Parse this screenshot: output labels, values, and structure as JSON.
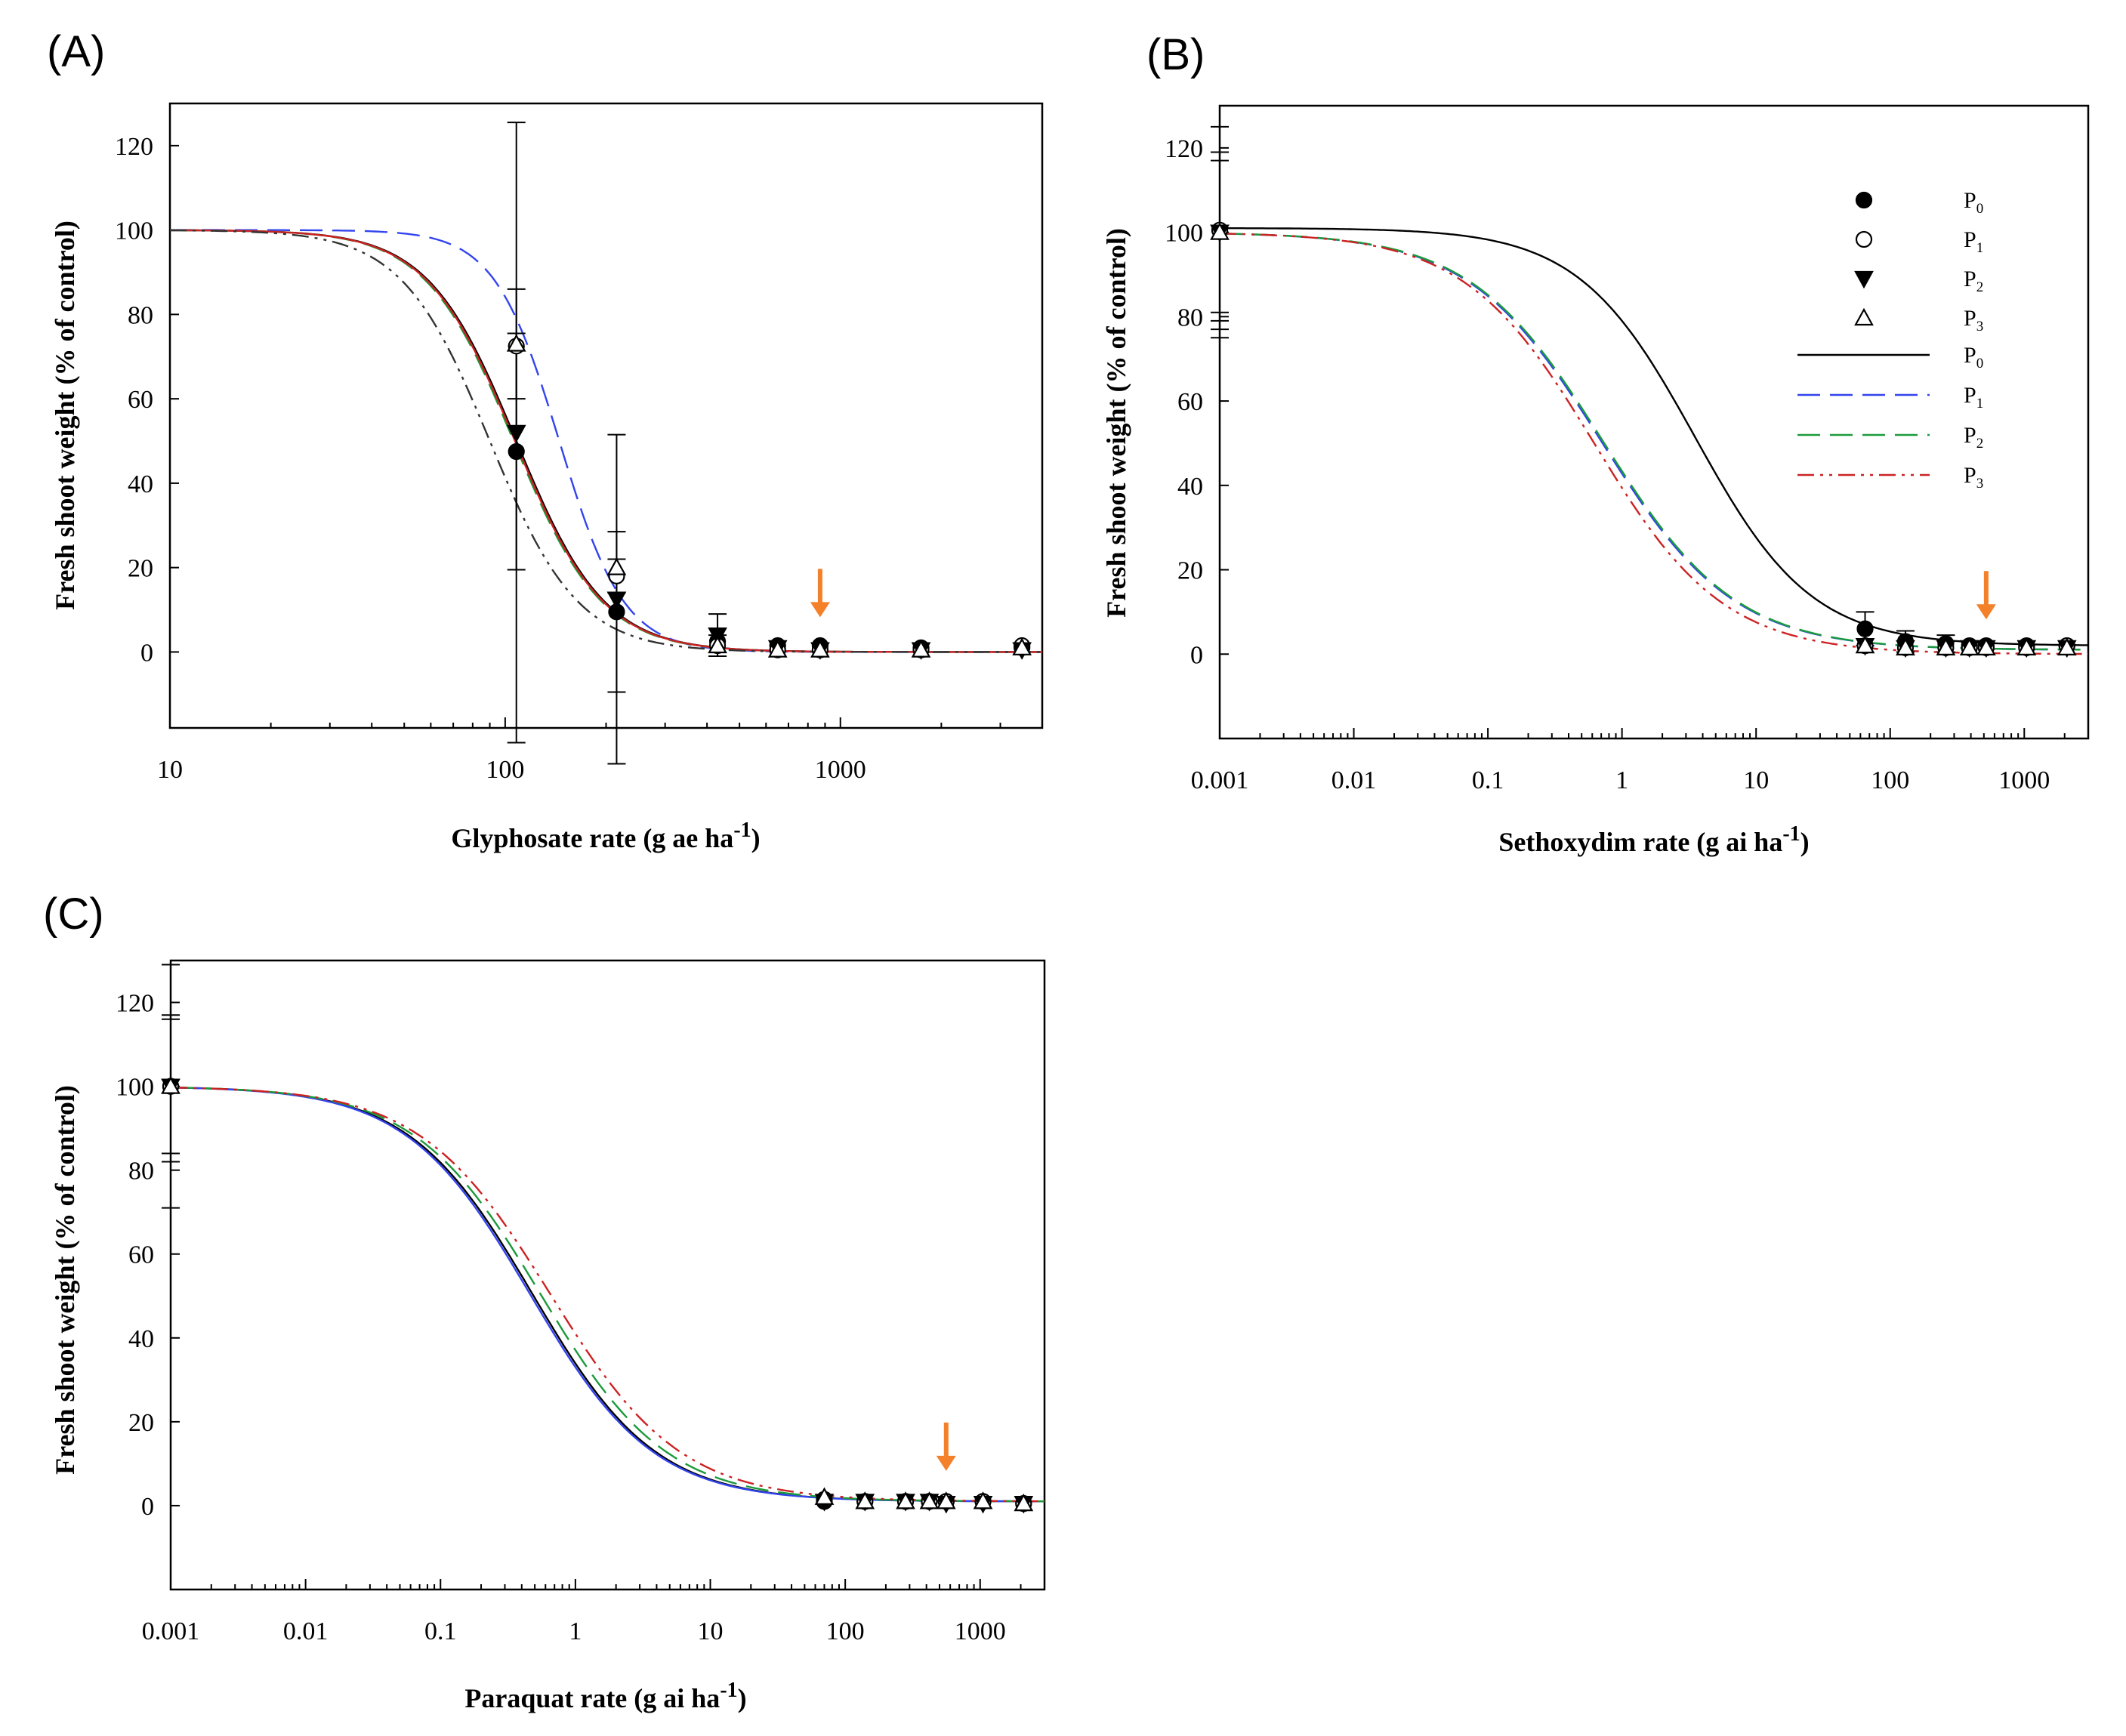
{
  "figure": {
    "marker_color": "#000000",
    "arrow_color": "#f4802a"
  },
  "chart_data": [
    {
      "panel": "(A)",
      "type": "scatter",
      "xscale": "log",
      "xlim": [
        10,
        4000
      ],
      "ylim": [
        -18,
        130
      ],
      "xticks": [
        10,
        100,
        1000
      ],
      "xtick_labels": [
        "10",
        "100",
        "1000"
      ],
      "yticks": [
        0,
        20,
        40,
        60,
        80,
        100,
        120
      ],
      "ytick_labels": [
        "0",
        "20",
        "40",
        "60",
        "80",
        "100",
        "120"
      ],
      "xlabel": "Glyphosate rate (g ae ha",
      "xlabel_sup": "-1",
      "xlabel_end": ")",
      "ylabel": "Fresh shoot weight (% of control)",
      "arrow_x": 870,
      "series": [
        {
          "name": "P0",
          "marker": "filled-circle",
          "x": [
            108,
            215,
            430,
            650,
            870,
            1740,
            3480
          ],
          "y": [
            47.5,
            9.5,
            2.5,
            1.5,
            1.5,
            1,
            1
          ],
          "err": [
            28,
            19,
            0,
            0,
            0,
            0,
            0
          ]
        },
        {
          "name": "P1",
          "marker": "open-circle",
          "x": [
            108,
            215,
            430,
            650,
            870,
            1740,
            3480
          ],
          "y": [
            72.5,
            18,
            1.5,
            0.5,
            0.5,
            0.5,
            1.5
          ],
          "err": [
            0,
            4,
            2.5,
            0,
            0,
            0,
            0
          ]
        },
        {
          "name": "P2",
          "marker": "filled-triangle-down",
          "x": [
            108,
            215,
            430,
            650,
            870,
            1740,
            3480
          ],
          "y": [
            52,
            12.5,
            4,
            1,
            0.5,
            0.5,
            0.5
          ],
          "err": [
            73.5,
            39,
            5,
            0,
            0,
            0,
            0
          ]
        },
        {
          "name": "P3",
          "marker": "open-triangle-up",
          "x": [
            108,
            215,
            430,
            650,
            870,
            1740,
            3480
          ],
          "y": [
            73,
            20,
            1.5,
            0.5,
            0.5,
            0.5,
            1
          ],
          "err": [
            13,
            0,
            0,
            0,
            0,
            0,
            0
          ]
        }
      ],
      "curves": [
        {
          "name": "P0",
          "color": "#000000",
          "dash": "solid",
          "top": 100,
          "bottom": 0,
          "x50": 108,
          "slope": 3.3
        },
        {
          "name": "P1",
          "color": "#3344ee",
          "dash": "long-dash",
          "top": 100,
          "bottom": 0,
          "x50": 145,
          "slope": 4.5
        },
        {
          "name": "P2",
          "color": "#1a9a3a",
          "dash": "long-dash",
          "top": 100,
          "bottom": 0,
          "x50": 106,
          "slope": 3.3
        },
        {
          "name": "P3",
          "color": "#cc2222",
          "dash": "solid",
          "top": 100,
          "bottom": 0,
          "x50": 107,
          "slope": 3.3
        },
        {
          "name": "P3b",
          "color": "#333333",
          "dash": "dash-dot-dot",
          "top": 100,
          "bottom": 0,
          "x50": 90,
          "slope": 3.3
        }
      ]
    },
    {
      "panel": "(B)",
      "type": "scatter",
      "xscale": "log",
      "xlim": [
        0.001,
        3000
      ],
      "ylim": [
        -20,
        130
      ],
      "xticks": [
        0.001,
        0.01,
        0.1,
        1,
        10,
        100,
        1000
      ],
      "xtick_labels": [
        "0.001",
        "0.01",
        "0.1",
        "1",
        "10",
        "100",
        "1000"
      ],
      "yticks": [
        0,
        20,
        40,
        60,
        80,
        100,
        120
      ],
      "ytick_labels": [
        "0",
        "20",
        "40",
        "60",
        "80",
        "100",
        "120"
      ],
      "xlabel": "Sethoxydim rate (g ai ha",
      "xlabel_sup": "-1",
      "xlabel_end": ")",
      "ylabel": "Fresh shoot weight (% of control)",
      "arrow_x": 520,
      "legend": {
        "position": "top-right",
        "markers": [
          {
            "label": "P",
            "sub": "0",
            "marker": "filled-circle"
          },
          {
            "label": "P",
            "sub": "1",
            "marker": "open-circle"
          },
          {
            "label": "P",
            "sub": "2",
            "marker": "filled-triangle-down"
          },
          {
            "label": "P",
            "sub": "3",
            "marker": "open-triangle-up"
          }
        ],
        "lines": [
          {
            "label": "P",
            "sub": "0",
            "color": "#000000",
            "dash": "solid"
          },
          {
            "label": "P",
            "sub": "1",
            "color": "#3344ee",
            "dash": "long-dash"
          },
          {
            "label": "P",
            "sub": "2",
            "color": "#1a9a3a",
            "dash": "long-dash"
          },
          {
            "label": "P",
            "sub": "3",
            "color": "#cc2222",
            "dash": "dash-dot-dot"
          }
        ]
      },
      "control_errors": [
        125,
        119,
        117,
        81,
        79,
        77,
        75
      ],
      "series": [
        {
          "name": "P0",
          "marker": "filled-circle",
          "x": [
            0.001,
            65,
            130,
            260,
            390,
            520,
            1040,
            2080
          ],
          "y": [
            100.5,
            6,
            3,
            2.5,
            2,
            2,
            2,
            2
          ],
          "err": [
            0,
            4,
            2.5,
            2,
            0,
            0,
            0,
            0
          ]
        },
        {
          "name": "P1",
          "marker": "open-circle",
          "x": [
            0.001,
            65,
            130,
            260,
            390,
            520,
            1040,
            2080
          ],
          "y": [
            100.5,
            2,
            1.5,
            1.5,
            1.5,
            1.5,
            1.5,
            2
          ],
          "err": [
            0,
            0,
            0,
            0,
            0,
            0,
            0,
            0
          ]
        },
        {
          "name": "P2",
          "marker": "filled-triangle-down",
          "x": [
            0.001,
            65,
            130,
            260,
            390,
            520,
            1040,
            2080
          ],
          "y": [
            100,
            2,
            1.5,
            1.5,
            1.5,
            1.5,
            1.5,
            1.5
          ],
          "err": [
            0,
            0,
            0,
            0,
            0,
            0,
            0,
            0
          ]
        },
        {
          "name": "P3",
          "marker": "open-triangle-up",
          "x": [
            0.001,
            65,
            130,
            260,
            390,
            520,
            1040,
            2080
          ],
          "y": [
            100,
            2,
            1.5,
            1.5,
            1.5,
            1.5,
            1.5,
            1.5
          ],
          "err": [
            0,
            0,
            0,
            0,
            0,
            0,
            0,
            0
          ]
        }
      ],
      "curves": [
        {
          "name": "P0",
          "color": "#000000",
          "dash": "solid",
          "top": 101,
          "bottom": 2,
          "x50": 3.5,
          "slope": 1.0
        },
        {
          "name": "P1",
          "color": "#3344ee",
          "dash": "long-dash",
          "top": 100,
          "bottom": 1,
          "x50": 0.7,
          "slope": 0.88
        },
        {
          "name": "P2",
          "color": "#1a9a3a",
          "dash": "long-dash",
          "top": 100,
          "bottom": 1,
          "x50": 0.72,
          "slope": 0.88
        },
        {
          "name": "P3",
          "color": "#cc2222",
          "dash": "dash-dot-dot",
          "top": 100,
          "bottom": 0,
          "x50": 0.62,
          "slope": 0.9
        }
      ]
    },
    {
      "panel": "(C)",
      "type": "scatter",
      "xscale": "log",
      "xlim": [
        0.001,
        3000
      ],
      "ylim": [
        -20,
        130
      ],
      "xticks": [
        0.001,
        0.01,
        0.1,
        1,
        10,
        100,
        1000
      ],
      "xtick_labels": [
        "0.001",
        "0.01",
        "0.1",
        "1",
        "10",
        "100",
        "1000"
      ],
      "yticks": [
        0,
        20,
        40,
        60,
        80,
        100,
        120
      ],
      "ytick_labels": [
        "0",
        "20",
        "40",
        "60",
        "80",
        "100",
        "120"
      ],
      "xlabel": "Paraquat rate (g ai ha",
      "xlabel_sup": "-1",
      "xlabel_end": ")",
      "ylabel": "Fresh shoot weight (% of control)",
      "arrow_x": 560,
      "control_errors": [
        129,
        117,
        116,
        84,
        82,
        71
      ],
      "series": [
        {
          "name": "P0",
          "marker": "filled-circle",
          "x": [
            0.001,
            70,
            140,
            280,
            420,
            560,
            1050,
            2100
          ],
          "y": [
            100,
            1,
            1,
            1,
            1,
            1,
            1,
            0.5
          ],
          "err": [
            0,
            0,
            0,
            0,
            0,
            0,
            0,
            0
          ]
        },
        {
          "name": "P1",
          "marker": "open-circle",
          "x": [
            0.001,
            70,
            140,
            280,
            420,
            560,
            1050,
            2100
          ],
          "y": [
            100,
            1.5,
            1,
            1,
            1,
            1,
            1,
            0.5
          ],
          "err": [
            0,
            0,
            0,
            0,
            0,
            0,
            0,
            0
          ]
        },
        {
          "name": "P2",
          "marker": "filled-triangle-down",
          "x": [
            0.001,
            70,
            140,
            280,
            420,
            560,
            1050,
            2100
          ],
          "y": [
            100,
            1,
            1,
            1,
            1,
            0.5,
            0.5,
            0.5
          ],
          "err": [
            0,
            0,
            0,
            0,
            0,
            0,
            0,
            0
          ]
        },
        {
          "name": "P3",
          "marker": "open-triangle-up",
          "x": [
            0.001,
            70,
            140,
            280,
            420,
            560,
            1050,
            2100
          ],
          "y": [
            100,
            2,
            1,
            1,
            1,
            1,
            1,
            0.5
          ],
          "err": [
            0,
            0,
            0,
            0,
            0,
            0,
            0,
            0
          ]
        }
      ],
      "curves": [
        {
          "name": "P0",
          "color": "#000000",
          "dash": "solid",
          "top": 100,
          "bottom": 1,
          "x50": 0.48,
          "slope": 0.95
        },
        {
          "name": "P1",
          "color": "#3344ee",
          "dash": "solid",
          "top": 100,
          "bottom": 1,
          "x50": 0.46,
          "slope": 0.95
        },
        {
          "name": "P2",
          "color": "#1a9a3a",
          "dash": "long-dash",
          "top": 100,
          "bottom": 1,
          "x50": 0.55,
          "slope": 0.93
        },
        {
          "name": "P3",
          "color": "#cc2222",
          "dash": "dash-dot-dot",
          "top": 100,
          "bottom": 1,
          "x50": 0.65,
          "slope": 0.9
        }
      ]
    }
  ]
}
